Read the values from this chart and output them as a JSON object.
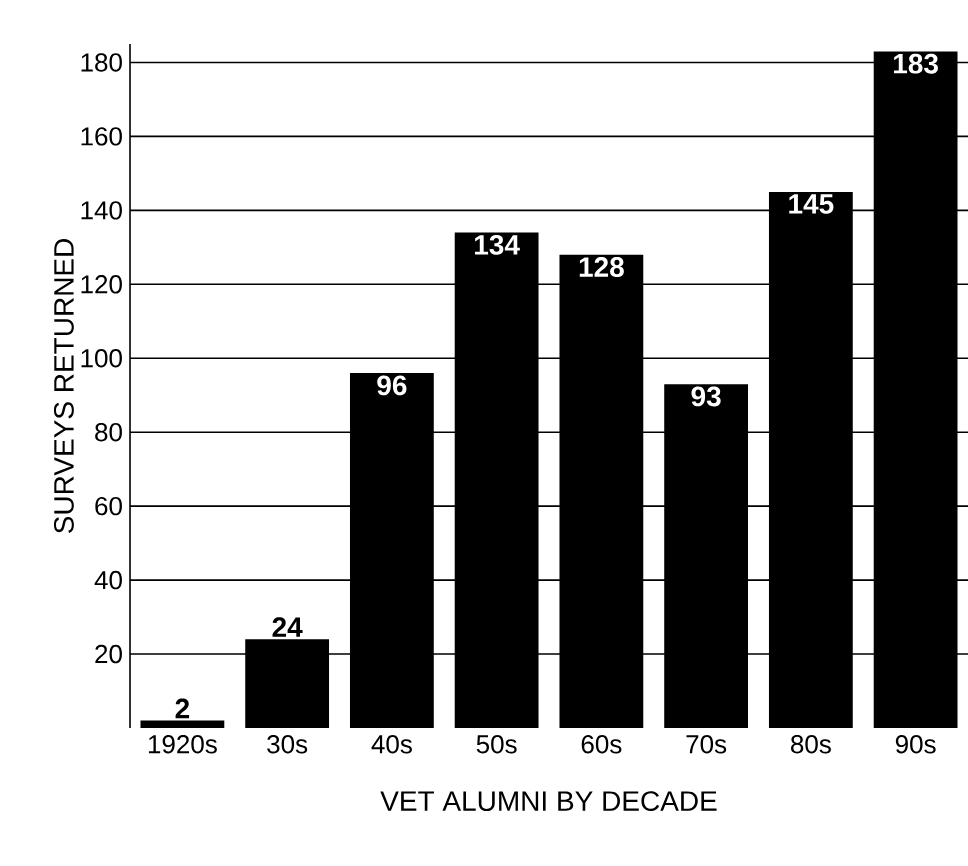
{
  "chart_data": {
    "type": "bar",
    "xlabel": "VET ALUMNI BY DECADE",
    "ylabel": "SURVEYS RETURNED",
    "categories": [
      "1920s",
      "30s",
      "40s",
      "50s",
      "60s",
      "70s",
      "80s",
      "90s"
    ],
    "values": [
      2,
      24,
      96,
      134,
      128,
      93,
      145,
      183
    ],
    "color": "#000000",
    "ylim": [
      0,
      185
    ],
    "yticks": [
      20,
      40,
      60,
      80,
      100,
      120,
      140,
      160,
      180
    ],
    "grid": "y",
    "data_labels": true
  }
}
